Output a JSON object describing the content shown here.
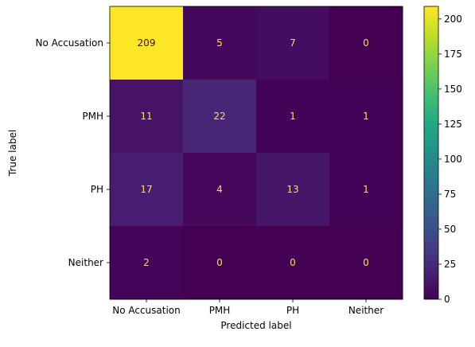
{
  "chart_data": {
    "type": "heatmap",
    "title": "",
    "xlabel": "Predicted label",
    "ylabel": "True label",
    "x_categories": [
      "No Accusation",
      "PMH",
      "PH",
      "Neither"
    ],
    "y_categories": [
      "No Accusation",
      "PMH",
      "PH",
      "Neither"
    ],
    "values": [
      [
        209,
        5,
        7,
        0
      ],
      [
        11,
        22,
        1,
        1
      ],
      [
        17,
        4,
        13,
        1
      ],
      [
        2,
        0,
        0,
        0
      ]
    ],
    "colormap": "viridis",
    "colorbar": {
      "min": 0,
      "max": 209,
      "ticks": [
        0,
        25,
        50,
        75,
        100,
        125,
        150,
        175,
        200
      ]
    },
    "annotation_colors": {
      "on_dark": "#fde725",
      "on_light": "#440154"
    },
    "grid": false,
    "legend": "none"
  }
}
